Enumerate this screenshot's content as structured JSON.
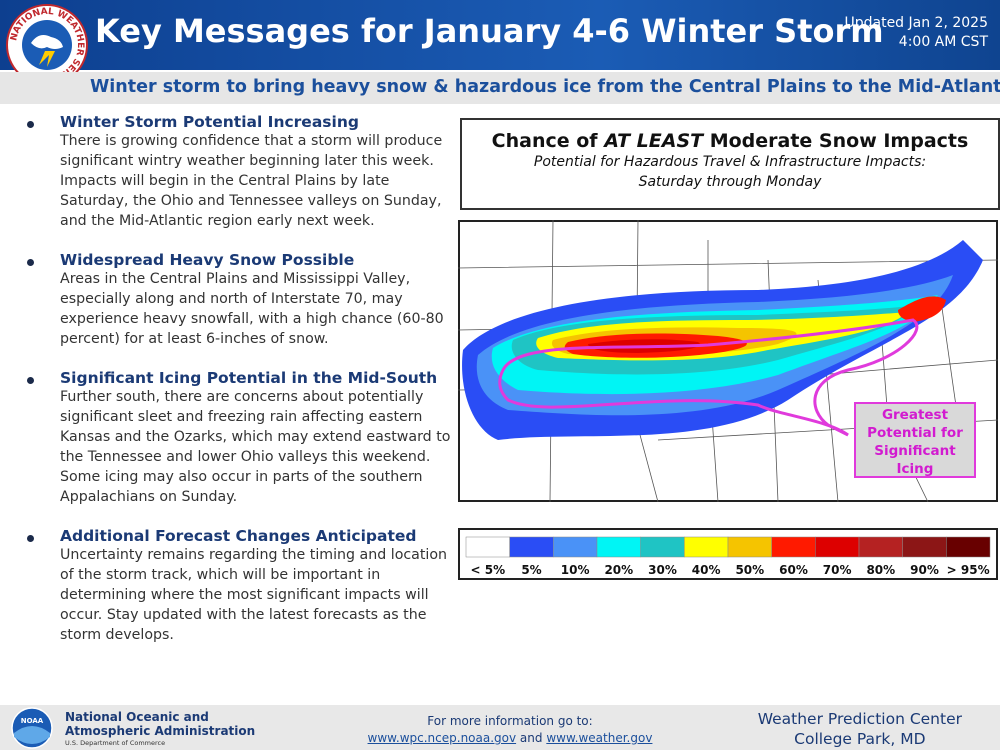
{
  "header": {
    "logo_text": "NATIONAL WEATHER SERVICE",
    "title": "Key Messages for January 4-6 Winter Storm",
    "updated": [
      "Updated Jan 2, 2025",
      "4:00 AM CST"
    ]
  },
  "subtitle": "Winter storm to bring heavy snow & hazardous ice from the Central Plains to the Mid-Atlantic",
  "messages": [
    {
      "heading": "Winter Storm Potential Increasing",
      "text": "There is growing confidence that a storm will produce significant wintry weather beginning later this week. Impacts will begin in the Central Plains by late Saturday, the Ohio and Tennessee valleys on Sunday, and the Mid-Atlantic region early next week."
    },
    {
      "heading": "Widespread Heavy Snow Possible",
      "text": "Areas in the Central Plains and Mississippi Valley, especially along and north of Interstate 70, may experience heavy snowfall, with a high chance (60-80 percent) for at least 6-inches of snow."
    },
    {
      "heading": "Significant Icing Potential in the Mid-South",
      "text": "Further south, there are concerns about potentially significant sleet and freezing rain affecting eastern Kansas and the Ozarks, which may extend eastward to the Tennessee and lower Ohio valleys this weekend. Some icing may also occur in parts of the southern Appalachians on Sunday."
    },
    {
      "heading": "Additional Forecast Changes Anticipated",
      "text": "Uncertainty remains regarding the timing and location of the storm track, which will be important in determining where the most significant impacts will occur. Stay updated with the latest forecasts as the storm develops."
    }
  ],
  "map": {
    "title_parts": [
      "Chance of ",
      "AT LEAST",
      " Moderate Snow Impacts"
    ],
    "subtitle": [
      "Potential for Hazardous Travel & Infrastructure Impacts:",
      "Saturday through Monday"
    ],
    "annotation": [
      "Greatest",
      "Potential for",
      "Significant",
      "Icing"
    ],
    "legend": [
      {
        "label": "< 5%",
        "color": "#ffffff"
      },
      {
        "label": "5%",
        "color": "#2a4df5"
      },
      {
        "label": "10%",
        "color": "#4a92f7"
      },
      {
        "label": "20%",
        "color": "#00f5f5"
      },
      {
        "label": "30%",
        "color": "#1fc4c4"
      },
      {
        "label": "40%",
        "color": "#ffff00"
      },
      {
        "label": "50%",
        "color": "#f5c400"
      },
      {
        "label": "60%",
        "color": "#ff1a00"
      },
      {
        "label": "70%",
        "color": "#dd0000"
      },
      {
        "label": "80%",
        "color": "#b52222"
      },
      {
        "label": "90%",
        "color": "#8c1616"
      },
      {
        "label": "> 95%",
        "color": "#680000"
      }
    ]
  },
  "footer": {
    "noaa_logo": "NOAA",
    "noaa_name": [
      "National Oceanic and",
      "Atmospheric Administration"
    ],
    "commerce": "U.S. Department of Commerce",
    "info": "For more information go to:",
    "links": [
      "www.wpc.ncep.noaa.gov",
      "www.weather.gov"
    ],
    "and": "and",
    "center": [
      "Weather Prediction Center",
      "College Park, MD"
    ]
  }
}
